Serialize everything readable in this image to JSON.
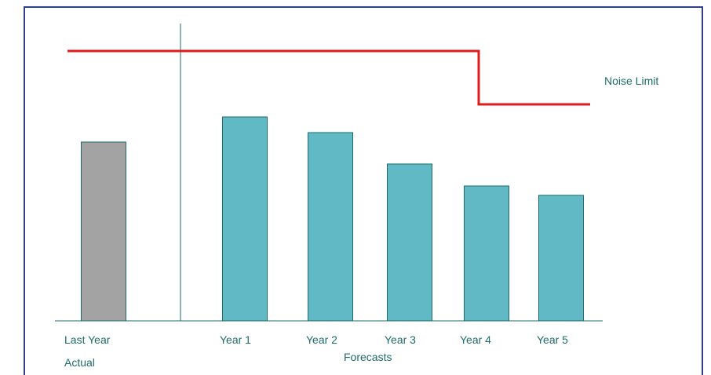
{
  "chart_data": {
    "type": "bar",
    "categories": [
      "Last Year",
      "Year 1",
      "Year 2",
      "Year 3",
      "Year 4",
      "Year 5"
    ],
    "values": [
      57,
      65,
      60,
      50,
      43,
      40
    ],
    "ylim": [
      0,
      100
    ],
    "bar_colors": [
      "#a3a3a3",
      "#60b9c4",
      "#60b9c4",
      "#60b9c4",
      "#60b9c4",
      "#60b9c4"
    ],
    "bar_stroke": "#1f6b6b",
    "actual_label": "Actual",
    "forecasts_label": "Forecasts",
    "noise_limit": {
      "label": "Noise Limit",
      "color": "#e01b1b",
      "segments": [
        {
          "from": "Last Year",
          "to": "Year 3",
          "value": 86
        },
        {
          "from": "Year 4",
          "to": "Year 5",
          "value": 69
        }
      ]
    }
  }
}
